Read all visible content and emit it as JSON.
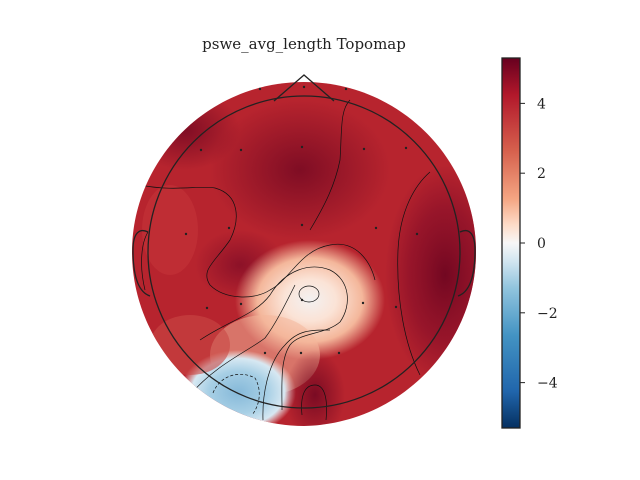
{
  "chart_data": {
    "type": "heatmap",
    "title": "pswe_avg_length Topomap",
    "colormap": "RdBu_r",
    "colorbar": {
      "range": [
        -5.3,
        5.3
      ],
      "ticks": [
        4,
        2,
        0,
        -2,
        -4
      ],
      "tick_labels": [
        "4",
        "2",
        "0",
        "−2",
        "−4"
      ]
    },
    "features": {
      "max_value": 5.3,
      "min_value": -2.5,
      "low_region": "lower-left (left occipital) negative area, near -2",
      "trough": "small minimum near center-right at about -1"
    },
    "colors": {
      "high": "#67001f",
      "mid": "#f7f7f7",
      "low": "#053061"
    }
  }
}
